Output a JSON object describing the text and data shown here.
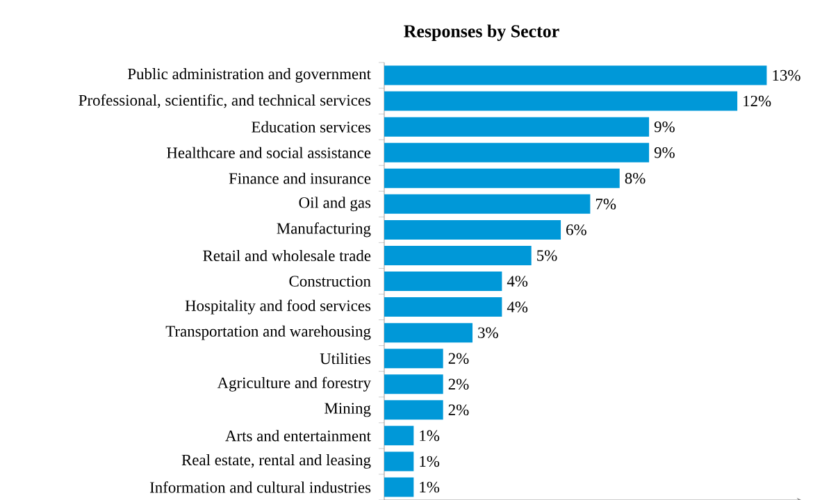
{
  "chart_data": {
    "type": "bar",
    "orientation": "horizontal",
    "title": "Responses by Sector",
    "categories": [
      "Public administration and government",
      "Professional, scientific, and technical services",
      "Education services",
      "Healthcare and social assistance",
      "Finance and insurance",
      "Oil and gas",
      "Manufacturing",
      "Retail and wholesale trade",
      "Construction",
      "Hospitality and food services",
      "Transportation and warehousing",
      "Utilities",
      "Agriculture and forestry",
      "Mining",
      "Arts and entertainment",
      "Real estate, rental and leasing",
      "Information and cultural industries"
    ],
    "values": [
      13,
      12,
      9,
      9,
      8,
      7,
      6,
      5,
      4,
      4,
      3,
      2,
      2,
      2,
      1,
      1,
      1
    ],
    "value_labels": [
      "13%",
      "12%",
      "9%",
      "9%",
      "8%",
      "7%",
      "6%",
      "5%",
      "4%",
      "4%",
      "3%",
      "2%",
      "2%",
      "2%",
      "1%",
      "1%",
      "1%"
    ],
    "color": "#0098d8"
  }
}
